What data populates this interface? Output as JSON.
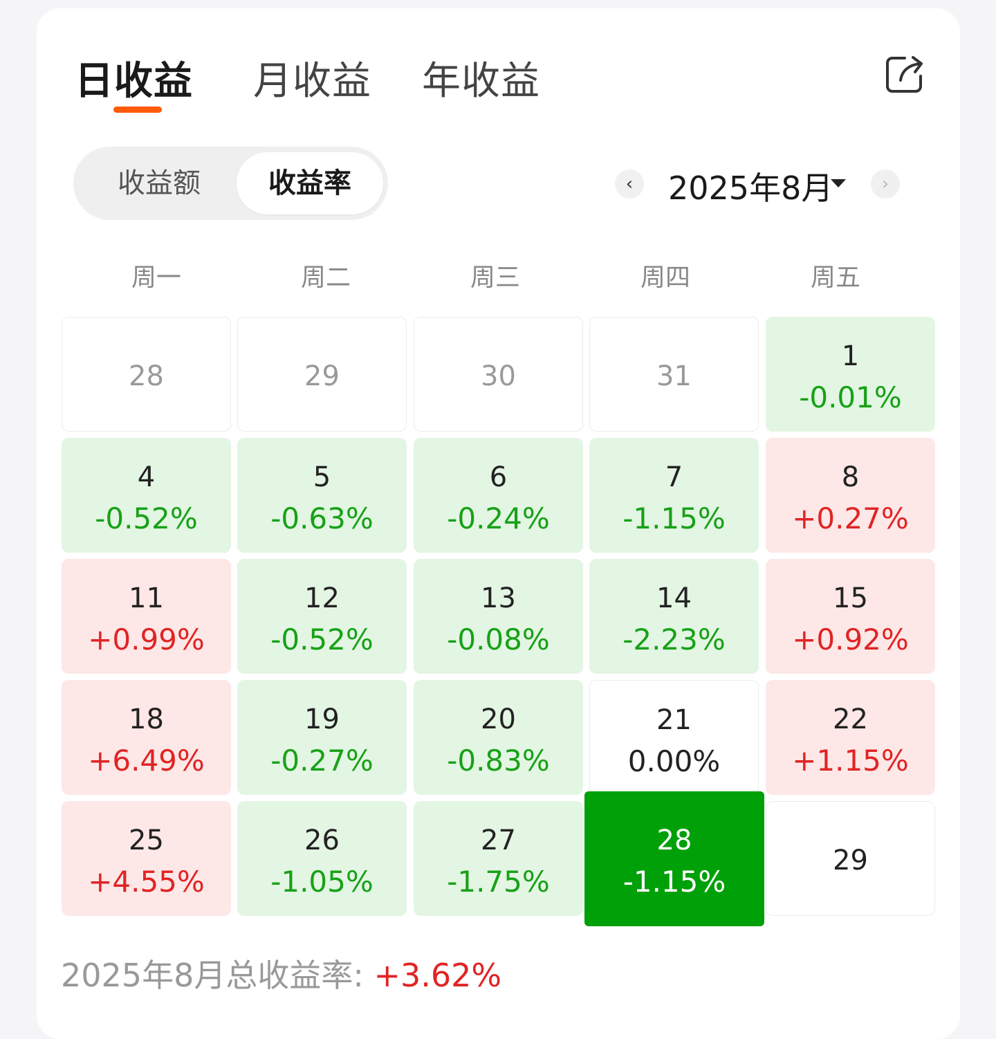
{
  "tabs": {
    "daily": "日收益",
    "monthly": "月收益",
    "yearly": "年收益"
  },
  "toggle": {
    "amount": "收益额",
    "rate": "收益率"
  },
  "nav": {
    "prev": "‹",
    "next": "›",
    "month_label": "2025年8月"
  },
  "weekdays": [
    "周一",
    "周二",
    "周三",
    "周四",
    "周五"
  ],
  "calendar": {
    "rows": [
      [
        {
          "day": "28",
          "value": ""
        },
        {
          "day": "29",
          "value": ""
        },
        {
          "day": "30",
          "value": ""
        },
        {
          "day": "31",
          "value": ""
        },
        {
          "day": "1",
          "value": "-0.01%"
        }
      ],
      [
        {
          "day": "4",
          "value": "-0.52%"
        },
        {
          "day": "5",
          "value": "-0.63%"
        },
        {
          "day": "6",
          "value": "-0.24%"
        },
        {
          "day": "7",
          "value": "-1.15%"
        },
        {
          "day": "8",
          "value": "+0.27%"
        }
      ],
      [
        {
          "day": "11",
          "value": "+0.99%"
        },
        {
          "day": "12",
          "value": "-0.52%"
        },
        {
          "day": "13",
          "value": "-0.08%"
        },
        {
          "day": "14",
          "value": "-2.23%"
        },
        {
          "day": "15",
          "value": "+0.92%"
        }
      ],
      [
        {
          "day": "18",
          "value": "+6.49%"
        },
        {
          "day": "19",
          "value": "-0.27%"
        },
        {
          "day": "20",
          "value": "-0.83%"
        },
        {
          "day": "21",
          "value": "0.00%"
        },
        {
          "day": "22",
          "value": "+1.15%"
        }
      ],
      [
        {
          "day": "25",
          "value": "+4.55%"
        },
        {
          "day": "26",
          "value": "-1.05%"
        },
        {
          "day": "27",
          "value": "-1.75%"
        },
        {
          "day": "28",
          "value": "-1.15%"
        },
        {
          "day": "29",
          "value": ""
        }
      ]
    ]
  },
  "summary": {
    "label": "2025年8月总收益率:",
    "value": "+3.62%"
  },
  "colors": {
    "accent": "#ff5a0a",
    "gain": "#e02424",
    "loss": "#17a117",
    "selected": "#00a008"
  }
}
